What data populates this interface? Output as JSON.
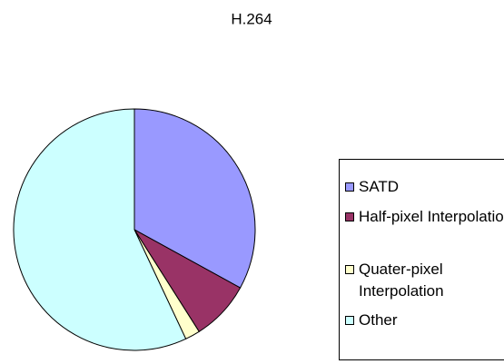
{
  "chart_data": {
    "type": "pie",
    "title": "H.264",
    "categories": [
      "SATD",
      "Half-pixel Interpolation",
      "Quater-pixel Interpolation",
      "Other"
    ],
    "values": [
      33,
      8,
      2,
      57
    ],
    "colors": [
      "#9999ff",
      "#993366",
      "#ffffcc",
      "#ccffff"
    ],
    "legend": "right"
  }
}
